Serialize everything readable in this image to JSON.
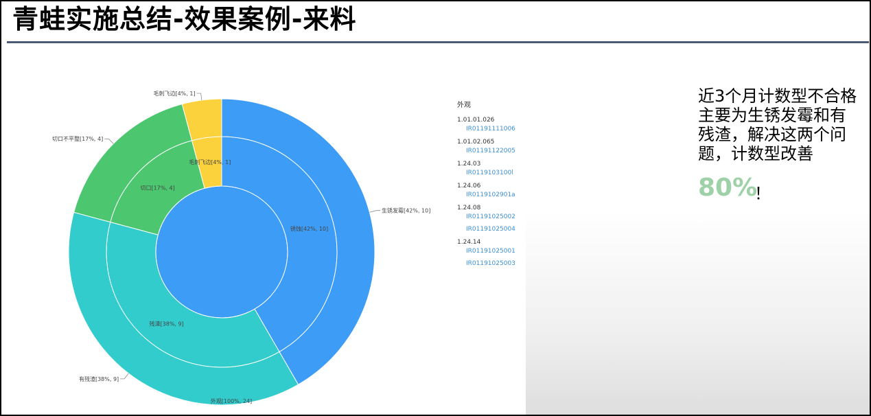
{
  "title": "青蛙实施总结-效果案例-来料",
  "note": {
    "lines": [
      "近3个月计数型不合格",
      "主要为生锈发霉和有",
      "残渣，解决这两个问",
      "题，计数型改善"
    ],
    "percent": "80%",
    "exclaim": "！"
  },
  "chart_data": {
    "type": "sunburst",
    "center": {
      "label": "外观[100%, 24]",
      "value": 24,
      "color": "#3d9cf5"
    },
    "middle": [
      {
        "label": "锈蚀[42%, 10]",
        "value": 10,
        "color": "#3d9cf5"
      },
      {
        "label": "残渣[38%, 9]",
        "value": 9,
        "color": "#33cccc"
      },
      {
        "label": "切口[17%, 4]",
        "value": 4,
        "color": "#4cc76f"
      },
      {
        "label": "毛刺飞边[4%, 1]",
        "value": 1,
        "color": "#fbd23b"
      }
    ],
    "outer": [
      {
        "label": "生锈发霉[42%, 10]",
        "value": 10,
        "color": "#3d9cf5"
      },
      {
        "label": "有残渣[38%, 9]",
        "value": 9,
        "color": "#33cccc"
      },
      {
        "label": "切口不平整[17%, 4]",
        "value": 4,
        "color": "#4cc76f"
      },
      {
        "label": "毛刺飞边[4%, 1]",
        "value": 1,
        "color": "#fbd23b"
      }
    ],
    "legend": {
      "title": "外观",
      "groups": [
        {
          "code": "1.01.01.026",
          "items": [
            "IR01191111006"
          ]
        },
        {
          "code": "1.01.02.065",
          "items": [
            "IR01191122005"
          ]
        },
        {
          "code": "1.24.03",
          "items": [
            "IR0119103100l"
          ]
        },
        {
          "code": "1.24.06",
          "items": [
            "IR0119102901a"
          ]
        },
        {
          "code": "1.24.08",
          "items": [
            "IR01191025002",
            "IR01191025004"
          ]
        },
        {
          "code": "1.24.14",
          "items": [
            "IR01191025001",
            "IR01191025003"
          ]
        }
      ]
    }
  }
}
